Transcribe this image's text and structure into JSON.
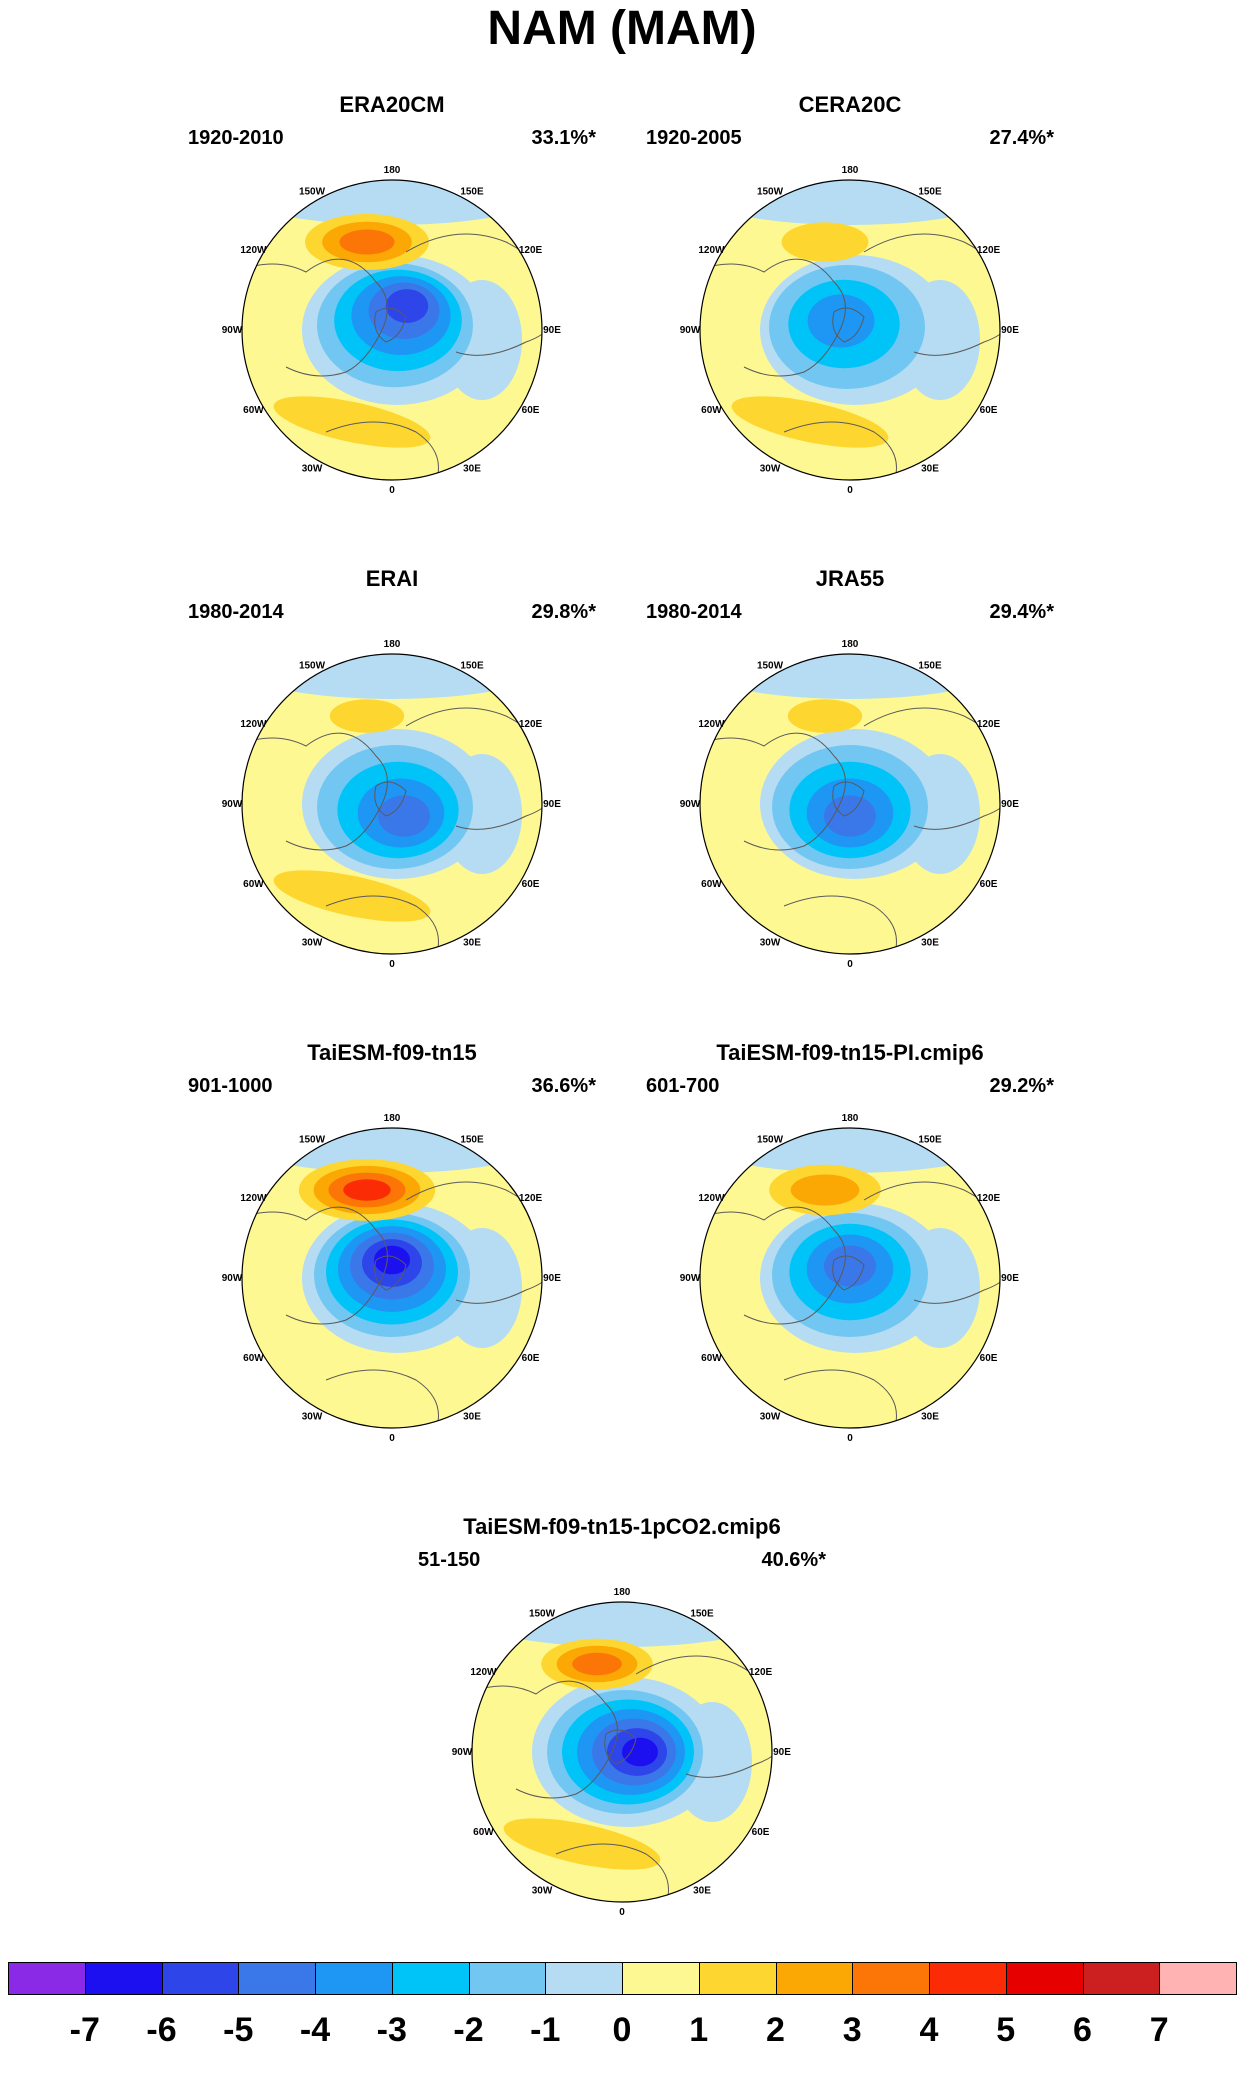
{
  "title": "NAM (MAM)",
  "longitude_labels": [
    "180",
    "150E",
    "120E",
    "90E",
    "60E",
    "30E",
    "0",
    "30W",
    "60W",
    "90W",
    "120W",
    "150W"
  ],
  "panels": [
    {
      "title": "ERA20CM",
      "period": "1920-2010",
      "variance": "33.1%*"
    },
    {
      "title": "CERA20C",
      "period": "1920-2005",
      "variance": "27.4%*"
    },
    {
      "title": "ERAI",
      "period": "1980-2014",
      "variance": "29.8%*"
    },
    {
      "title": "JRA55",
      "period": "1980-2014",
      "variance": "29.4%*"
    },
    {
      "title": "TaiESM-f09-tn15",
      "period": "901-1000",
      "variance": "36.6%*"
    },
    {
      "title": "TaiESM-f09-tn15-PI.cmip6",
      "period": "601-700",
      "variance": "29.2%*"
    },
    {
      "title": "TaiESM-f09-tn15-1pCO2.cmip6",
      "period": "51-150",
      "variance": "40.6%*"
    }
  ],
  "colorbar": {
    "labels": [
      "-7",
      "-6",
      "-5",
      "-4",
      "-3",
      "-2",
      "-1",
      "0",
      "1",
      "2",
      "3",
      "4",
      "5",
      "6",
      "7"
    ],
    "colors": [
      "#8a2ae6",
      "#1c10f0",
      "#2e45ea",
      "#3a78ea",
      "#1e96f4",
      "#00c4f8",
      "#72c7f2",
      "#b5dcf2",
      "#fef893",
      "#fdd630",
      "#fba704",
      "#fb7606",
      "#fb2c05",
      "#e60000",
      "#cc1f1f",
      "#ffb3b3"
    ]
  },
  "map_colors": {
    "positive": "#fef893",
    "negative": "#b5dcf2",
    "continents": "#5a5a5a"
  }
}
